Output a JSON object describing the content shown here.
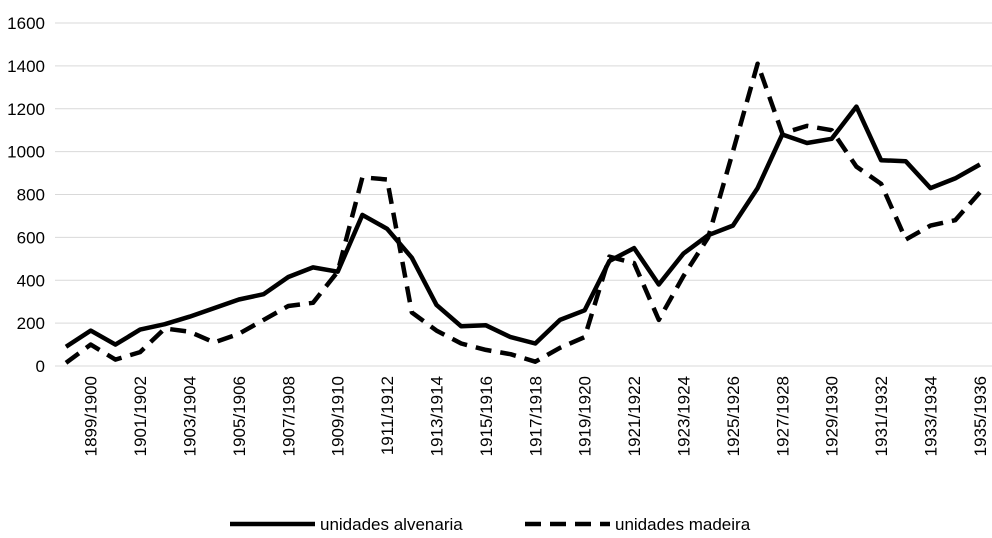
{
  "chart_data": {
    "type": "line",
    "categories": [
      null,
      "1899/1900",
      null,
      "1901/1902",
      null,
      "1903/1904",
      null,
      "1905/1906",
      null,
      "1907/1908",
      null,
      "1909/1910",
      null,
      "1911/1912",
      null,
      "1913/1914",
      null,
      "1915/1916",
      null,
      "1917/1918",
      null,
      "1919/1920",
      null,
      "1921/1922",
      null,
      "1923/1924",
      null,
      "1925/1926",
      null,
      "1927/1928",
      null,
      "1929/1930",
      null,
      "1931/1932",
      null,
      "1933/1934",
      null,
      "1935/1936"
    ],
    "series": [
      {
        "name": "unidades alvenaria",
        "color": "#000000",
        "dash": false,
        "values": [
          90,
          165,
          100,
          170,
          195,
          230,
          270,
          310,
          335,
          415,
          460,
          440,
          705,
          640,
          505,
          285,
          185,
          190,
          135,
          105,
          215,
          260,
          490,
          550,
          380,
          525,
          610,
          655,
          830,
          1080,
          1040,
          1060,
          1210,
          960,
          955,
          830,
          875,
          940
        ]
      },
      {
        "name": "unidades madeira",
        "color": "#000000",
        "dash": true,
        "values": [
          15,
          100,
          30,
          65,
          175,
          160,
          110,
          150,
          215,
          280,
          295,
          440,
          880,
          870,
          250,
          165,
          105,
          75,
          55,
          20,
          85,
          135,
          510,
          480,
          215,
          420,
          600,
          1000,
          1410,
          1085,
          1120,
          1100,
          930,
          850,
          590,
          655,
          680,
          810
        ]
      }
    ],
    "ylim": [
      0,
      1600
    ],
    "yticks": [
      0,
      200,
      400,
      600,
      800,
      1000,
      1200,
      1400,
      1600
    ],
    "grid": true,
    "legend": "bottom"
  }
}
